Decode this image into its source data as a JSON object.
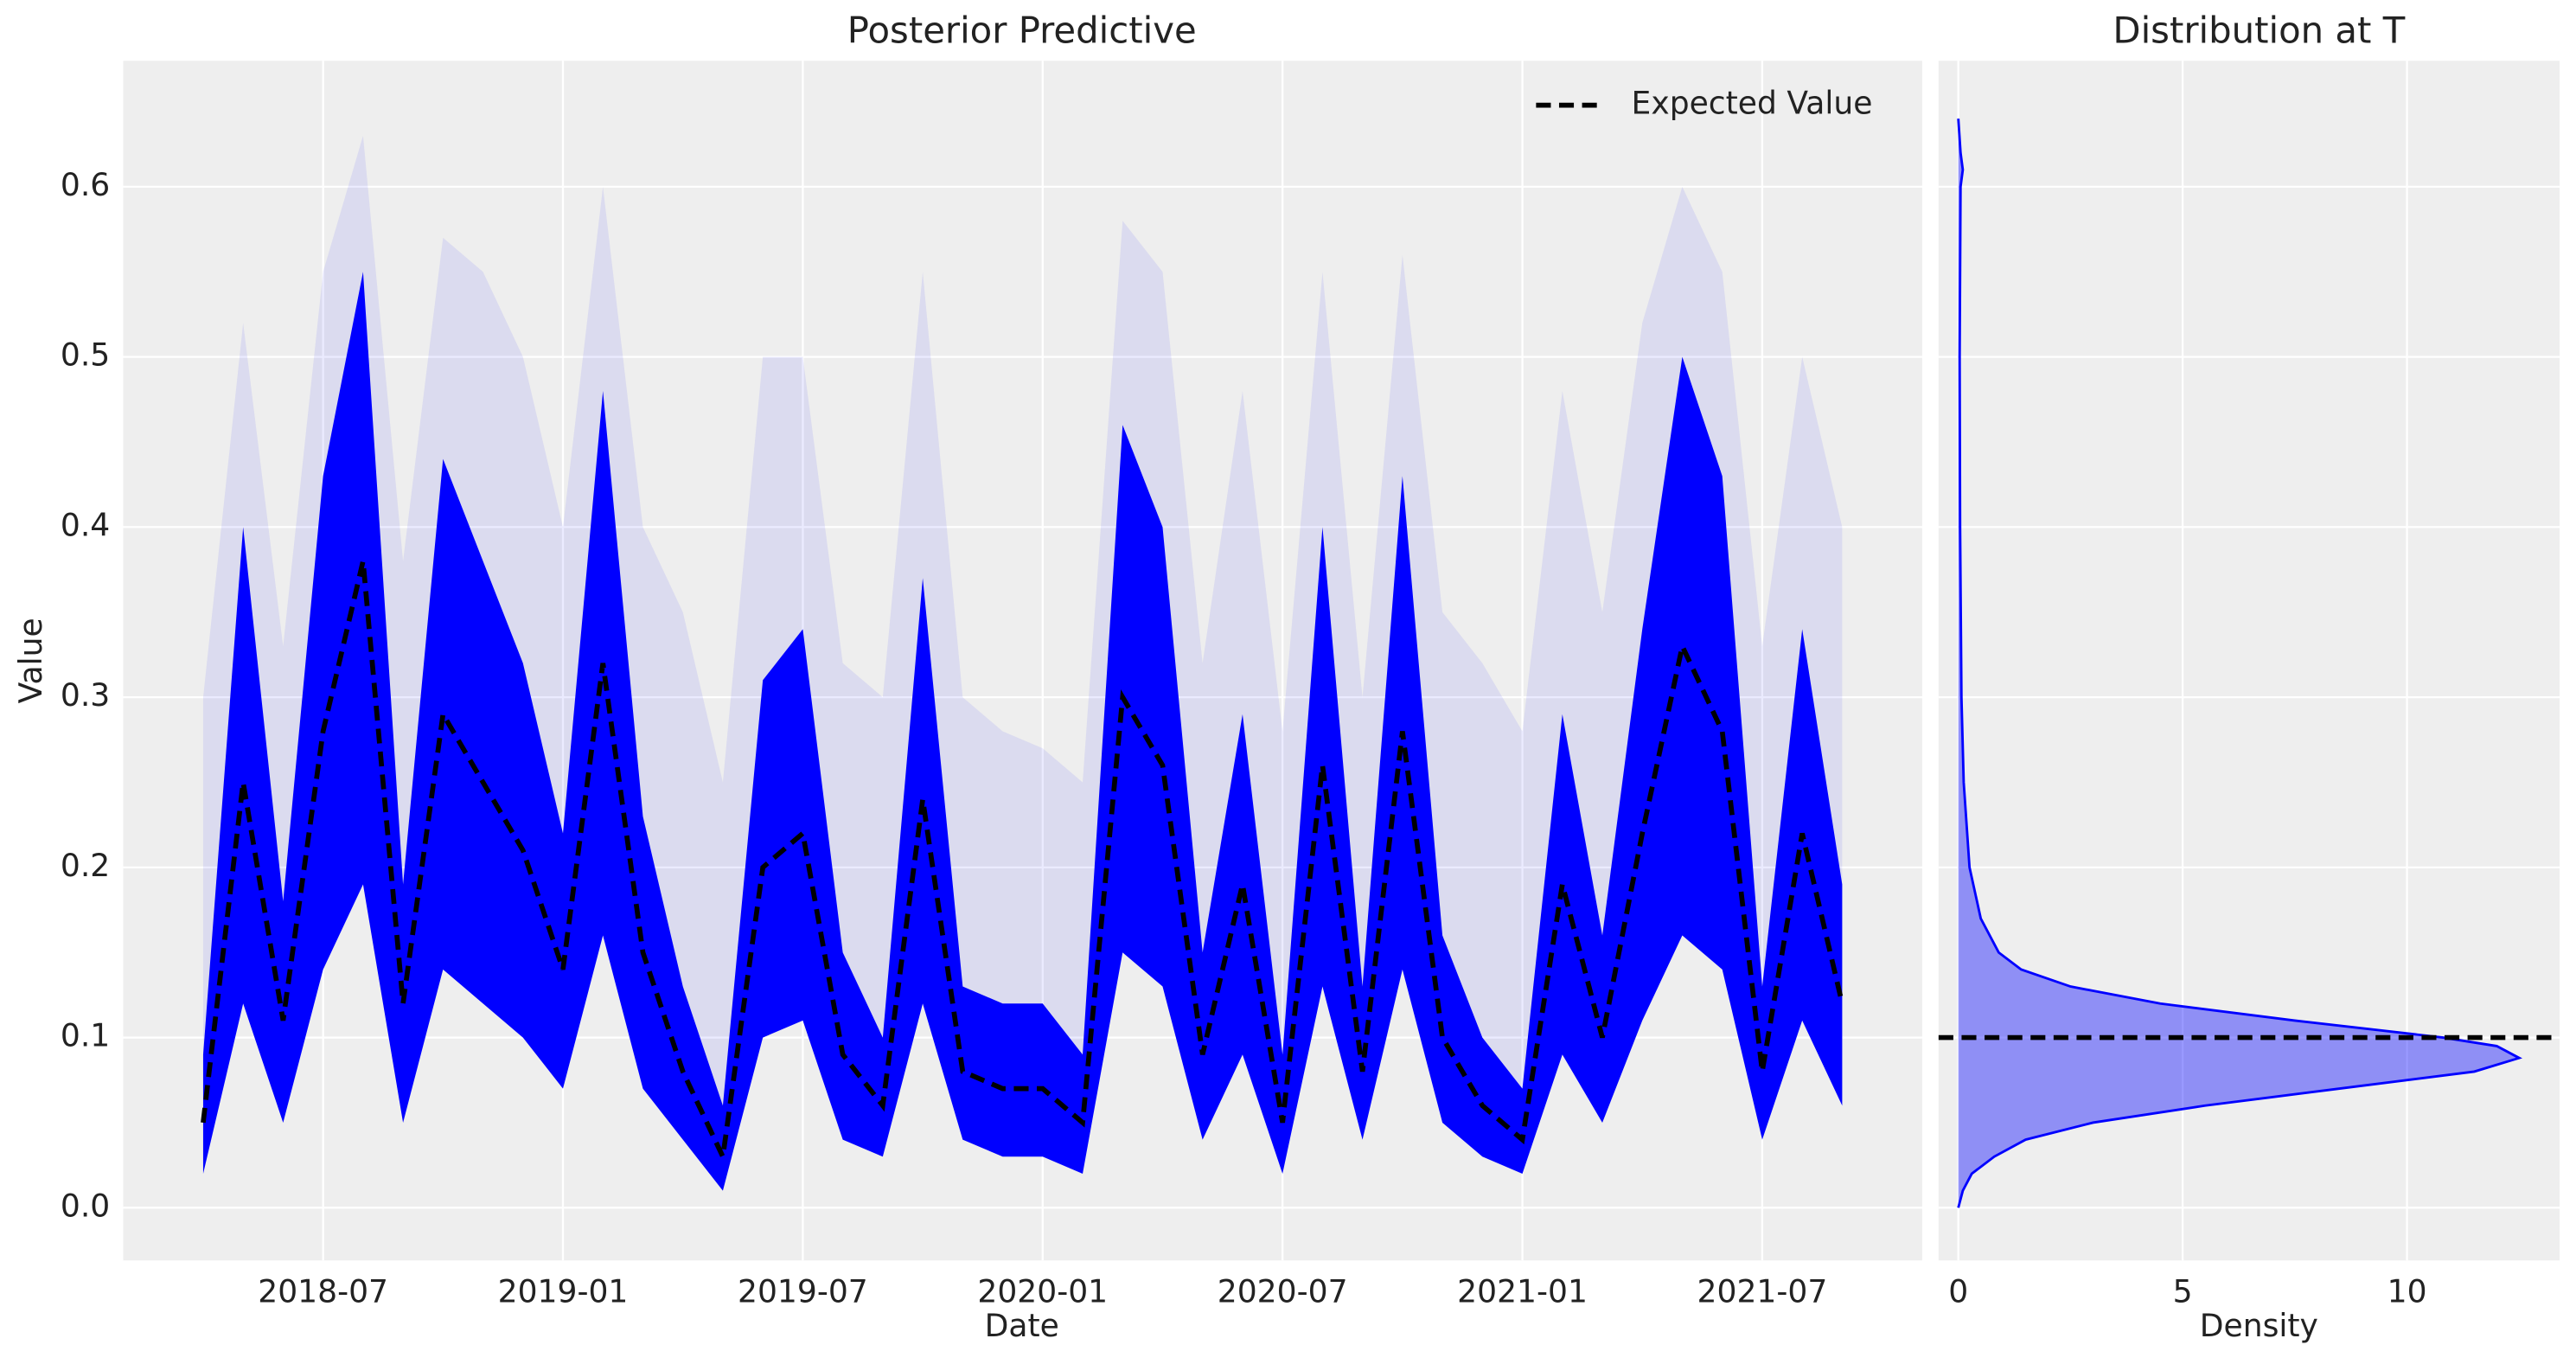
{
  "chart_data": [
    {
      "type": "line",
      "title": "Posterior Predictive",
      "xlabel": "Date",
      "ylabel": "Value",
      "x": [
        "2018-04",
        "2018-05",
        "2018-06",
        "2018-07",
        "2018-08",
        "2018-09",
        "2018-10",
        "2018-11",
        "2018-12",
        "2019-01",
        "2019-02",
        "2019-03",
        "2019-04",
        "2019-05",
        "2019-06",
        "2019-07",
        "2019-08",
        "2019-09",
        "2019-10",
        "2019-11",
        "2019-12",
        "2020-01",
        "2020-02",
        "2020-03",
        "2020-04",
        "2020-05",
        "2020-06",
        "2020-07",
        "2020-08",
        "2020-09",
        "2020-10",
        "2020-11",
        "2020-12",
        "2021-01",
        "2021-02",
        "2021-03",
        "2021-04",
        "2021-05",
        "2021-06",
        "2021-07",
        "2021-08",
        "2021-09"
      ],
      "series": [
        {
          "name": "Expected Value",
          "color": "#000000",
          "dash": true,
          "values": [
            0.05,
            0.25,
            0.11,
            0.28,
            0.38,
            0.12,
            0.29,
            0.25,
            0.21,
            0.14,
            0.32,
            0.15,
            0.08,
            0.03,
            0.2,
            0.22,
            0.09,
            0.06,
            0.24,
            0.08,
            0.07,
            0.07,
            0.05,
            0.3,
            0.26,
            0.09,
            0.19,
            0.05,
            0.26,
            0.08,
            0.28,
            0.1,
            0.06,
            0.04,
            0.19,
            0.1,
            0.22,
            0.33,
            0.28,
            0.08,
            0.22,
            0.12
          ]
        }
      ],
      "band": {
        "color": "#0000ff",
        "lower": [
          0.02,
          0.12,
          0.05,
          0.14,
          0.19,
          0.05,
          0.14,
          0.12,
          0.1,
          0.07,
          0.16,
          0.07,
          0.04,
          0.01,
          0.1,
          0.11,
          0.04,
          0.03,
          0.12,
          0.04,
          0.03,
          0.03,
          0.02,
          0.15,
          0.13,
          0.04,
          0.09,
          0.02,
          0.13,
          0.04,
          0.14,
          0.05,
          0.03,
          0.02,
          0.09,
          0.05,
          0.11,
          0.16,
          0.14,
          0.04,
          0.11,
          0.06
        ],
        "upper": [
          0.09,
          0.4,
          0.18,
          0.43,
          0.55,
          0.19,
          0.44,
          0.38,
          0.32,
          0.22,
          0.48,
          0.23,
          0.13,
          0.06,
          0.31,
          0.34,
          0.15,
          0.1,
          0.37,
          0.13,
          0.12,
          0.12,
          0.09,
          0.46,
          0.4,
          0.15,
          0.29,
          0.09,
          0.4,
          0.13,
          0.43,
          0.16,
          0.1,
          0.07,
          0.29,
          0.16,
          0.34,
          0.5,
          0.43,
          0.13,
          0.34,
          0.19
        ],
        "outer_upper": [
          0.3,
          0.52,
          0.33,
          0.55,
          0.63,
          0.38,
          0.57,
          0.55,
          0.5,
          0.4,
          0.6,
          0.4,
          0.35,
          0.25,
          0.5,
          0.5,
          0.32,
          0.3,
          0.55,
          0.3,
          0.28,
          0.27,
          0.25,
          0.58,
          0.55,
          0.32,
          0.48,
          0.28,
          0.55,
          0.3,
          0.56,
          0.35,
          0.32,
          0.28,
          0.48,
          0.35,
          0.52,
          0.6,
          0.55,
          0.33,
          0.5,
          0.4
        ]
      },
      "xlim": [
        "2018-02",
        "2021-11"
      ],
      "xticks": [
        "2018-07",
        "2019-01",
        "2019-07",
        "2020-01",
        "2020-07",
        "2021-01",
        "2021-07"
      ],
      "ylim": [
        -0.031,
        0.674
      ],
      "yticks": [
        {
          "value": 0,
          "label": "0.0"
        },
        0.1,
        0.2,
        0.3,
        0.4,
        0.5,
        0.6
      ],
      "grid": true,
      "legend": "upper right"
    },
    {
      "type": "density",
      "title": "Distribution at T",
      "xlabel": "Density",
      "color": "#0000ff",
      "y": [
        0.0,
        0.01,
        0.02,
        0.03,
        0.04,
        0.05,
        0.06,
        0.07,
        0.08,
        0.088,
        0.095,
        0.1,
        0.11,
        0.12,
        0.13,
        0.14,
        0.15,
        0.17,
        0.2,
        0.25,
        0.3,
        0.4,
        0.5,
        0.6,
        0.61,
        0.62,
        0.64
      ],
      "values": [
        0.0,
        0.1,
        0.3,
        0.8,
        1.5,
        3.0,
        5.5,
        8.5,
        11.5,
        12.5,
        12.0,
        10.8,
        7.5,
        4.5,
        2.5,
        1.4,
        0.9,
        0.5,
        0.25,
        0.12,
        0.07,
        0.04,
        0.03,
        0.05,
        0.1,
        0.05,
        0.0
      ],
      "hline": 0.1,
      "hline_color": "#000000",
      "xlim": [
        -0.44,
        13.4
      ],
      "xticks": [
        0,
        5,
        10
      ],
      "ylim": [
        -0.031,
        0.674
      ],
      "yticks": [
        0,
        0.1,
        0.2,
        0.3,
        0.4,
        0.5,
        0.6
      ],
      "grid": true
    }
  ]
}
